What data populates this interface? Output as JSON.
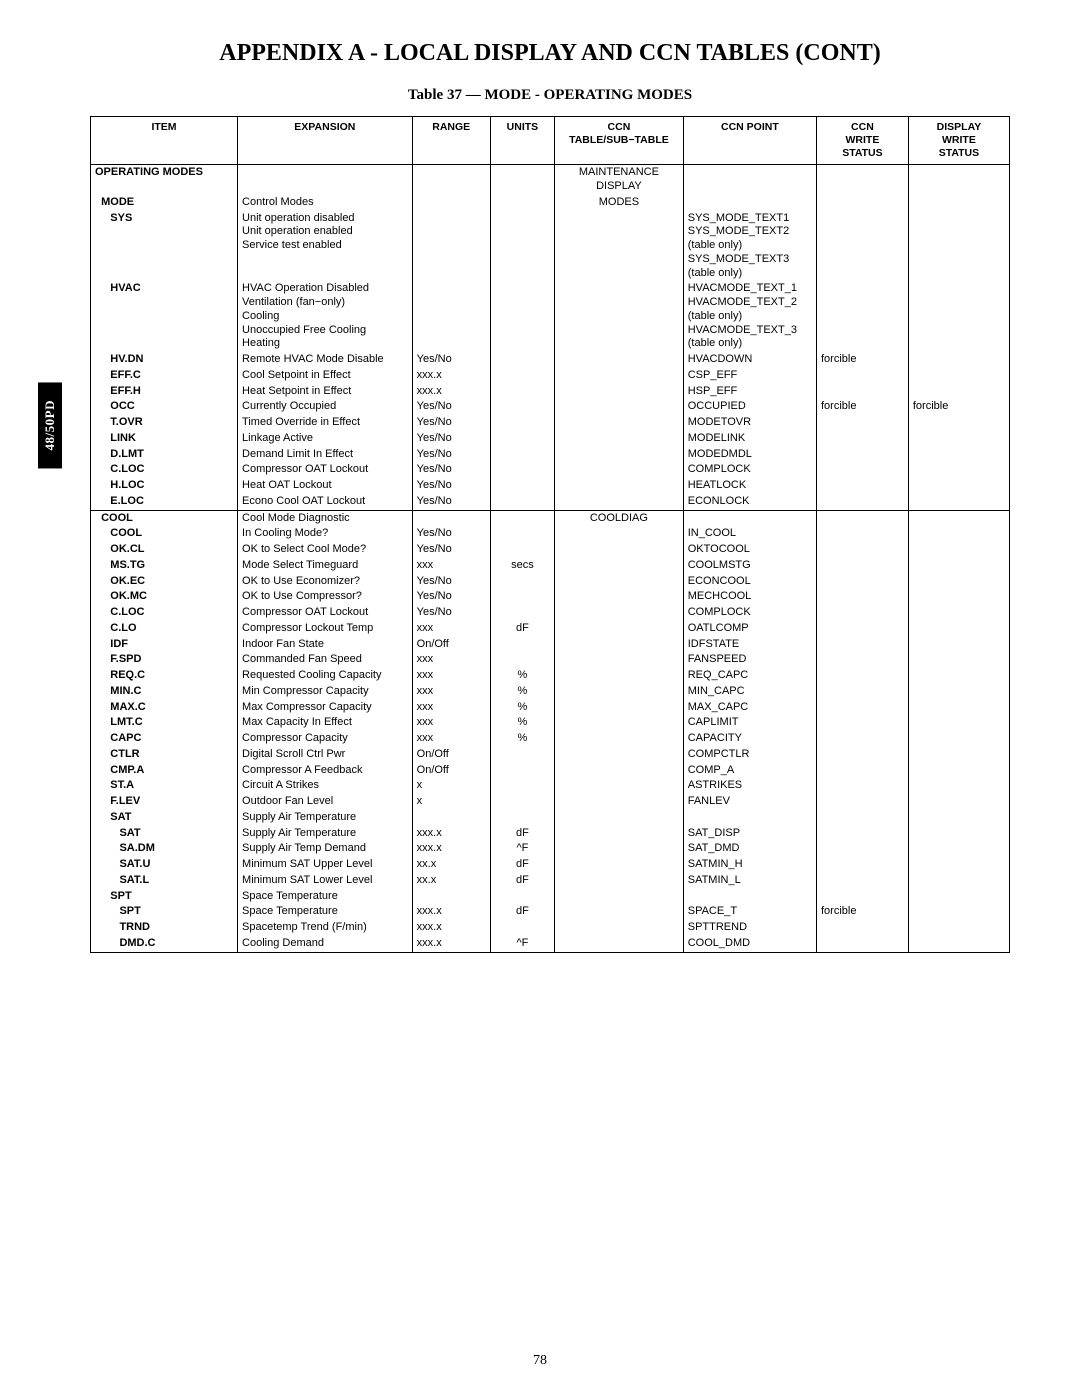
{
  "page": {
    "appendix_title": "APPENDIX A - LOCAL DISPLAY AND CCN TABLES (CONT)",
    "table_caption": "Table 37 — MODE - OPERATING MODES",
    "side_tab": "48/50PD",
    "page_number": "78"
  },
  "table": {
    "headers": {
      "item": "ITEM",
      "expansion": "EXPANSION",
      "range": "RANGE",
      "units": "UNITS",
      "sub_table": "CCN\nTABLE/SUB−TABLE",
      "ccn_point": "CCN POINT",
      "ccn_write": "CCN\nWRITE\nSTATUS",
      "display_write": "DISPLAY\nWRITE\nSTATUS"
    },
    "sections": [
      {
        "rows": [
          {
            "indent": 0,
            "item": "OPERATING MODES",
            "expansion": "",
            "range": "",
            "units": "",
            "sub_table": "MAINTENANCE\nDISPLAY",
            "ccn_point": "",
            "ccn_write": "",
            "display_write": ""
          },
          {
            "indent": 1,
            "item": "MODE",
            "expansion": "Control Modes",
            "range": "",
            "units": "",
            "sub_table": "MODES",
            "ccn_point": "",
            "ccn_write": "",
            "display_write": ""
          },
          {
            "indent": 2,
            "item": "SYS",
            "expansion": "Unit operation disabled\nUnit operation enabled\nService test enabled",
            "range": "",
            "units": "",
            "sub_table": "",
            "ccn_point": "SYS_MODE_TEXT1\nSYS_MODE_TEXT2\n(table only)\nSYS_MODE_TEXT3\n(table only)",
            "ccn_write": "",
            "display_write": ""
          },
          {
            "indent": 2,
            "item": "HVAC",
            "expansion": "HVAC Operation Disabled\nVentilation (fan−only)\nCooling\nUnoccupied Free Cooling\nHeating",
            "range": "",
            "units": "",
            "sub_table": "",
            "ccn_point": "HVACMODE_TEXT_1\nHVACMODE_TEXT_2 (table only)\nHVACMODE_TEXT_3 (table only)",
            "ccn_write": "",
            "display_write": ""
          },
          {
            "indent": 2,
            "item": "HV.DN",
            "expansion": "Remote HVAC Mode Disable",
            "range": "Yes/No",
            "units": "",
            "sub_table": "",
            "ccn_point": "HVACDOWN",
            "ccn_write": "forcible",
            "display_write": ""
          },
          {
            "indent": 2,
            "item": "EFF.C",
            "expansion": "Cool Setpoint in Effect",
            "range": "xxx.x",
            "units": "",
            "sub_table": "",
            "ccn_point": "CSP_EFF",
            "ccn_write": "",
            "display_write": ""
          },
          {
            "indent": 2,
            "item": "EFF.H",
            "expansion": "Heat Setpoint in Effect",
            "range": "xxx.x",
            "units": "",
            "sub_table": "",
            "ccn_point": "HSP_EFF",
            "ccn_write": "",
            "display_write": ""
          },
          {
            "indent": 2,
            "item": "OCC",
            "expansion": "Currently Occupied",
            "range": "Yes/No",
            "units": "",
            "sub_table": "",
            "ccn_point": "OCCUPIED",
            "ccn_write": "forcible",
            "display_write": "forcible"
          },
          {
            "indent": 2,
            "item": "T.OVR",
            "expansion": "Timed Override in Effect",
            "range": "Yes/No",
            "units": "",
            "sub_table": "",
            "ccn_point": "MODETOVR",
            "ccn_write": "",
            "display_write": ""
          },
          {
            "indent": 2,
            "item": "LINK",
            "expansion": "Linkage Active",
            "range": "Yes/No",
            "units": "",
            "sub_table": "",
            "ccn_point": "MODELINK",
            "ccn_write": "",
            "display_write": ""
          },
          {
            "indent": 2,
            "item": "D.LMT",
            "expansion": "Demand Limit In Effect",
            "range": "Yes/No",
            "units": "",
            "sub_table": "",
            "ccn_point": "MODEDMDL",
            "ccn_write": "",
            "display_write": ""
          },
          {
            "indent": 2,
            "item": "C.LOC",
            "expansion": "Compressor OAT Lockout",
            "range": "Yes/No",
            "units": "",
            "sub_table": "",
            "ccn_point": "COMPLOCK",
            "ccn_write": "",
            "display_write": ""
          },
          {
            "indent": 2,
            "item": "H.LOC",
            "expansion": "Heat OAT Lockout",
            "range": "Yes/No",
            "units": "",
            "sub_table": "",
            "ccn_point": "HEATLOCK",
            "ccn_write": "",
            "display_write": ""
          },
          {
            "indent": 2,
            "item": "E.LOC",
            "expansion": "Econo Cool OAT Lockout",
            "range": "Yes/No",
            "units": "",
            "sub_table": "",
            "ccn_point": "ECONLOCK",
            "ccn_write": "",
            "display_write": ""
          }
        ]
      },
      {
        "rows": [
          {
            "indent": 1,
            "item": "COOL",
            "expansion": "Cool Mode Diagnostic",
            "range": "",
            "units": "",
            "sub_table": "COOLDIAG",
            "ccn_point": "",
            "ccn_write": "",
            "display_write": ""
          },
          {
            "indent": 2,
            "item": "COOL",
            "expansion": "In Cooling Mode?",
            "range": "Yes/No",
            "units": "",
            "sub_table": "",
            "ccn_point": "IN_COOL",
            "ccn_write": "",
            "display_write": ""
          },
          {
            "indent": 2,
            "item": "OK.CL",
            "expansion": "OK to Select Cool Mode?",
            "range": "Yes/No",
            "units": "",
            "sub_table": "",
            "ccn_point": "OKTOCOOL",
            "ccn_write": "",
            "display_write": ""
          },
          {
            "indent": 2,
            "item": "MS.TG",
            "expansion": "Mode Select Timeguard",
            "range": "xxx",
            "units": "secs",
            "sub_table": "",
            "ccn_point": "COOLMSTG",
            "ccn_write": "",
            "display_write": ""
          },
          {
            "indent": 2,
            "item": "OK.EC",
            "expansion": "OK to Use Economizer?",
            "range": "Yes/No",
            "units": "",
            "sub_table": "",
            "ccn_point": "ECONCOOL",
            "ccn_write": "",
            "display_write": ""
          },
          {
            "indent": 2,
            "item": "OK.MC",
            "expansion": "OK to Use Compressor?",
            "range": "Yes/No",
            "units": "",
            "sub_table": "",
            "ccn_point": "MECHCOOL",
            "ccn_write": "",
            "display_write": ""
          },
          {
            "indent": 2,
            "item": "C.LOC",
            "expansion": "Compressor OAT Lockout",
            "range": "Yes/No",
            "units": "",
            "sub_table": "",
            "ccn_point": "COMPLOCK",
            "ccn_write": "",
            "display_write": ""
          },
          {
            "indent": 2,
            "item": "C.LO",
            "expansion": "Compressor Lockout Temp",
            "range": "xxx",
            "units": "dF",
            "sub_table": "",
            "ccn_point": "OATLCOMP",
            "ccn_write": "",
            "display_write": ""
          },
          {
            "indent": 2,
            "item": "IDF",
            "expansion": "Indoor Fan State",
            "range": "On/Off",
            "units": "",
            "sub_table": "",
            "ccn_point": "IDFSTATE",
            "ccn_write": "",
            "display_write": ""
          },
          {
            "indent": 2,
            "item": "F.SPD",
            "expansion": "Commanded Fan Speed",
            "range": "xxx",
            "units": "",
            "sub_table": "",
            "ccn_point": "FANSPEED",
            "ccn_write": "",
            "display_write": ""
          },
          {
            "indent": 2,
            "item": "REQ.C",
            "expansion": "Requested Cooling Capacity",
            "range": "xxx",
            "units": "%",
            "sub_table": "",
            "ccn_point": "REQ_CAPC",
            "ccn_write": "",
            "display_write": ""
          },
          {
            "indent": 2,
            "item": "MIN.C",
            "expansion": "Min Compressor Capacity",
            "range": "xxx",
            "units": "%",
            "sub_table": "",
            "ccn_point": "MIN_CAPC",
            "ccn_write": "",
            "display_write": ""
          },
          {
            "indent": 2,
            "item": "MAX.C",
            "expansion": "Max Compressor Capacity",
            "range": "xxx",
            "units": "%",
            "sub_table": "",
            "ccn_point": "MAX_CAPC",
            "ccn_write": "",
            "display_write": ""
          },
          {
            "indent": 2,
            "item": "LMT.C",
            "expansion": "Max Capacity In Effect",
            "range": "xxx",
            "units": "%",
            "sub_table": "",
            "ccn_point": "CAPLIMIT",
            "ccn_write": "",
            "display_write": ""
          },
          {
            "indent": 2,
            "item": "CAPC",
            "expansion": "Compressor Capacity",
            "range": "xxx",
            "units": "%",
            "sub_table": "",
            "ccn_point": "CAPACITY",
            "ccn_write": "",
            "display_write": ""
          },
          {
            "indent": 2,
            "item": "CTLR",
            "expansion": "Digital Scroll Ctrl Pwr",
            "range": "On/Off",
            "units": "",
            "sub_table": "",
            "ccn_point": "COMPCTLR",
            "ccn_write": "",
            "display_write": ""
          },
          {
            "indent": 2,
            "item": "CMP.A",
            "expansion": "Compressor A Feedback",
            "range": "On/Off",
            "units": "",
            "sub_table": "",
            "ccn_point": "COMP_A",
            "ccn_write": "",
            "display_write": ""
          },
          {
            "indent": 2,
            "item": "ST.A",
            "expansion": "Circuit A Strikes",
            "range": "x",
            "units": "",
            "sub_table": "",
            "ccn_point": "ASTRIKES",
            "ccn_write": "",
            "display_write": ""
          },
          {
            "indent": 2,
            "item": "F.LEV",
            "expansion": "Outdoor Fan Level",
            "range": "x",
            "units": "",
            "sub_table": "",
            "ccn_point": "FANLEV",
            "ccn_write": "",
            "display_write": ""
          },
          {
            "indent": 2,
            "item": "SAT",
            "expansion": "Supply Air Temperature",
            "range": "",
            "units": "",
            "sub_table": "",
            "ccn_point": "",
            "ccn_write": "",
            "display_write": ""
          },
          {
            "indent": 3,
            "item": "SAT",
            "expansion": "Supply Air Temperature",
            "range": "xxx.x",
            "units": "dF",
            "sub_table": "",
            "ccn_point": "SAT_DISP",
            "ccn_write": "",
            "display_write": ""
          },
          {
            "indent": 3,
            "item": "SA.DM",
            "expansion": "Supply Air Temp Demand",
            "range": "xxx.x",
            "units": "^F",
            "sub_table": "",
            "ccn_point": "SAT_DMD",
            "ccn_write": "",
            "display_write": ""
          },
          {
            "indent": 3,
            "item": "SAT.U",
            "expansion": "Minimum SAT Upper Level",
            "range": "xx.x",
            "units": "dF",
            "sub_table": "",
            "ccn_point": "SATMIN_H",
            "ccn_write": "",
            "display_write": ""
          },
          {
            "indent": 3,
            "item": "SAT.L",
            "expansion": "Minimum SAT Lower Level",
            "range": "xx.x",
            "units": "dF",
            "sub_table": "",
            "ccn_point": "SATMIN_L",
            "ccn_write": "",
            "display_write": ""
          },
          {
            "indent": 2,
            "item": "SPT",
            "expansion": "Space Temperature",
            "range": "",
            "units": "",
            "sub_table": "",
            "ccn_point": "",
            "ccn_write": "",
            "display_write": ""
          },
          {
            "indent": 3,
            "item": "SPT",
            "expansion": "Space Temperature",
            "range": "xxx.x",
            "units": "dF",
            "sub_table": "",
            "ccn_point": "SPACE_T",
            "ccn_write": "forcible",
            "display_write": ""
          },
          {
            "indent": 3,
            "item": "TRND",
            "expansion": "Spacetemp Trend  (F/min)",
            "range": "xxx.x",
            "units": "",
            "sub_table": "",
            "ccn_point": "SPTTREND",
            "ccn_write": "",
            "display_write": ""
          },
          {
            "indent": 3,
            "item": "DMD.C",
            "expansion": "Cooling Demand",
            "range": "xxx.x",
            "units": "^F",
            "sub_table": "",
            "ccn_point": "COOL_DMD",
            "ccn_write": "",
            "display_write": ""
          }
        ]
      }
    ]
  }
}
